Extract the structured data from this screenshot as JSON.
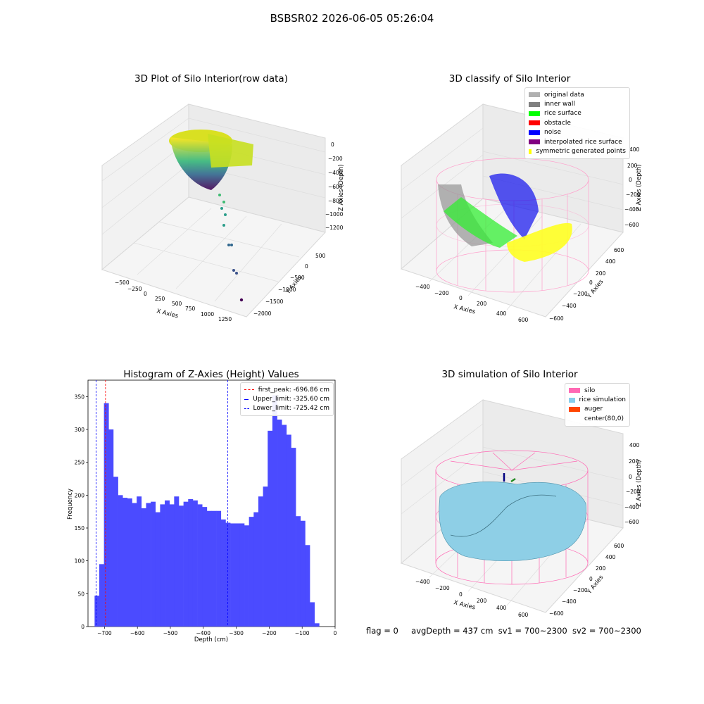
{
  "figure": {
    "title": "BSBSR02 2026-06-05 05:26:04",
    "status": {
      "flag": "flag = 0",
      "avg_depth": "avgDepth = 437 cm",
      "sv1": "sv1 = 700~2300",
      "sv2": "sv2 = 700~2300"
    }
  },
  "chart_data": [
    {
      "type": "scatter",
      "title": "3D Plot of Silo Interior(row data)",
      "xlabel": "X Axies",
      "ylabel": "Y Axies",
      "zlabel": "Z Axies (Depth)",
      "x_ticks": [
        "−500",
        "−250",
        "0",
        "250",
        "500",
        "750",
        "1000",
        "1250"
      ],
      "y_ticks": [
        "500",
        "0",
        "−500",
        "−1000",
        "−1500",
        "−2000"
      ],
      "z_ticks": [
        "0",
        "−200",
        "−400",
        "−600",
        "−800",
        "−1000",
        "−1200"
      ],
      "colormap": "viridis",
      "grid": true
    },
    {
      "type": "scatter",
      "title": "3D classify of Silo Interior",
      "xlabel": "X Axies",
      "ylabel": "Y Axies",
      "zlabel": "Z Axies (Depth)",
      "x_ticks": [
        "−400",
        "−200",
        "0",
        "200",
        "400",
        "600"
      ],
      "y_ticks": [
        "600",
        "400",
        "200",
        "0",
        "−200",
        "−400",
        "−600"
      ],
      "z_ticks": [
        "200",
        "0",
        "−200",
        "−400",
        "−600"
      ],
      "legend": [
        {
          "label": "original data",
          "color": "#b0b0b0"
        },
        {
          "label": "inner wall",
          "color": "#808080"
        },
        {
          "label": "rice surface",
          "color": "#00ff00"
        },
        {
          "label": "obstacle",
          "color": "#ff0000"
        },
        {
          "label": "noise",
          "color": "#0000ff"
        },
        {
          "label": "interpolated rice surface",
          "color": "#800080"
        },
        {
          "label": "symmetric generated points",
          "color": "#ffff00"
        }
      ],
      "z_extra_tick": "400",
      "legend_position": "top-right",
      "grid": true
    },
    {
      "type": "bar",
      "title": "Histogram of Z-Axies (Height) Values",
      "xlabel": "Depth (cm)",
      "ylabel": "Frequency",
      "bin_start": -730,
      "bin_width": 14.2,
      "values": [
        47,
        95,
        340,
        300,
        228,
        200,
        196,
        195,
        188,
        198,
        180,
        188,
        190,
        174,
        186,
        192,
        186,
        198,
        184,
        190,
        194,
        192,
        186,
        182,
        176,
        176,
        176,
        163,
        158,
        157,
        157,
        157,
        154,
        167,
        174,
        198,
        213,
        298,
        352,
        315,
        307,
        292,
        272,
        168,
        161,
        124,
        37,
        5
      ],
      "xlim": [
        -750,
        0
      ],
      "ylim": [
        0,
        375
      ],
      "x_ticks": [
        "−700",
        "−600",
        "−500",
        "−400",
        "−300",
        "−200",
        "−100",
        "0"
      ],
      "y_ticks": [
        "0",
        "50",
        "100",
        "150",
        "200",
        "250",
        "300",
        "350"
      ],
      "color": "#4b4bff",
      "lines": [
        {
          "label": "first_peak: -696.86 cm",
          "x": -696.86,
          "color": "#ff0000"
        },
        {
          "label": "Upper_limit: -325.60 cm",
          "x": -325.6,
          "color": "#0000ff"
        },
        {
          "label": "Lower_limit: -725.42 cm",
          "x": -725.42,
          "color": "#0000ff"
        }
      ],
      "legend_position": "top-right"
    },
    {
      "type": "surface",
      "title": "3D simulation of Silo Interior",
      "xlabel": "X Axies",
      "ylabel": "Y Axies",
      "zlabel": "Z Axies (Depth)",
      "x_ticks": [
        "−400",
        "−200",
        "0",
        "200",
        "400",
        "600"
      ],
      "y_ticks": [
        "600",
        "400",
        "200",
        "0",
        "−200",
        "−400",
        "−600"
      ],
      "z_ticks": [
        "400",
        "200",
        "0",
        "−200",
        "−400",
        "−600"
      ],
      "legend": [
        {
          "label": "silo",
          "color": "#ff69b4"
        },
        {
          "label": "rice simulation",
          "color": "#87ceeb"
        },
        {
          "label": "auger",
          "color": "#ff4500"
        },
        {
          "label": "center(80,0)",
          "color": ""
        }
      ],
      "legend_position": "top-right",
      "grid": true
    }
  ]
}
